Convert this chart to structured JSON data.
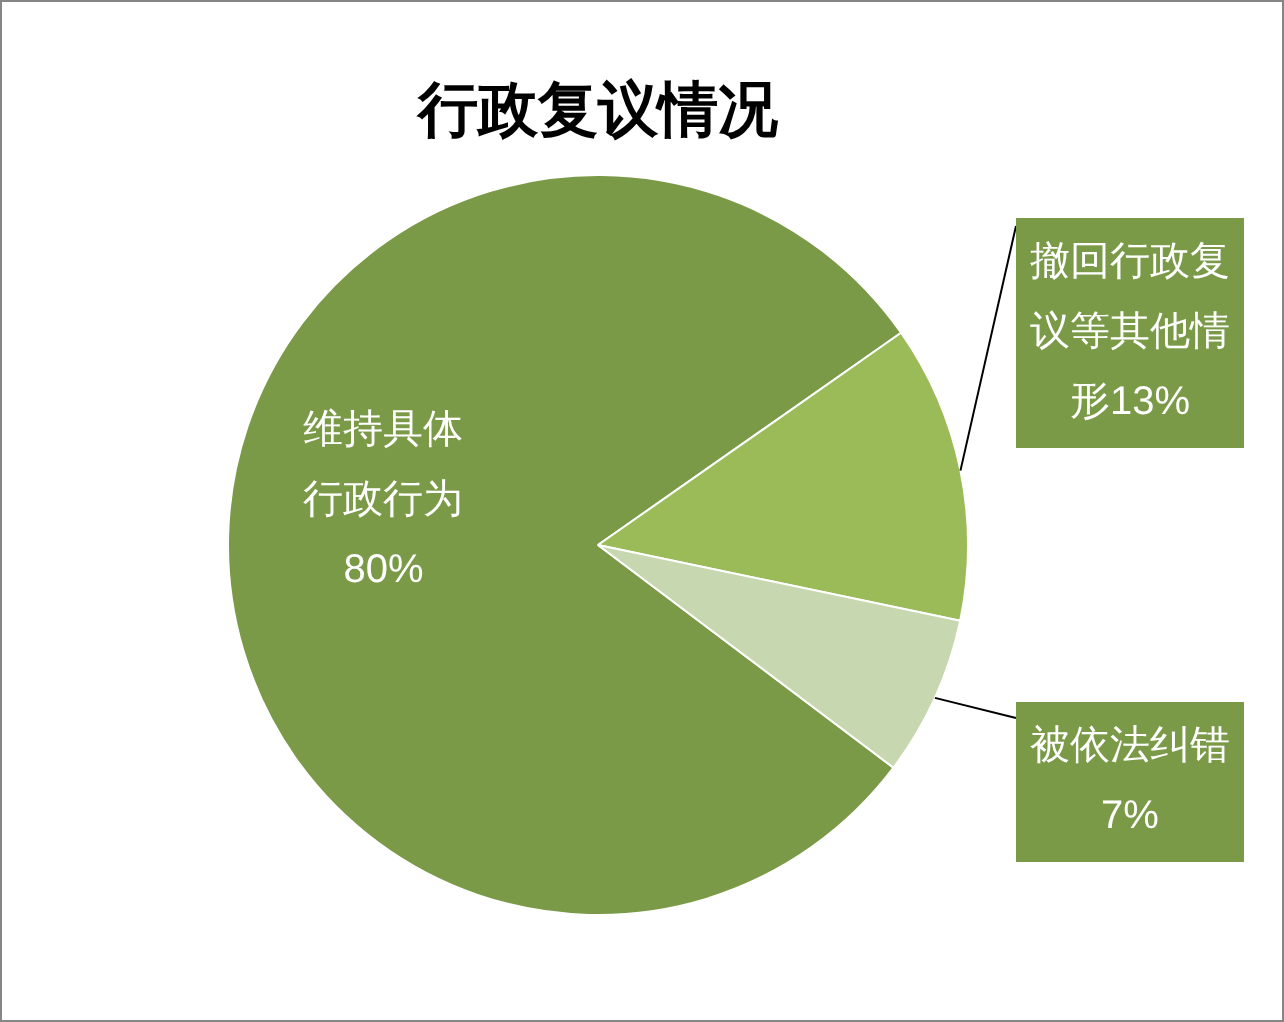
{
  "chart_data": {
    "type": "pie",
    "title": "行政复议情况",
    "categories": [
      "维持具体行政行为",
      "撤回行政复议等其他情形",
      "被依法纠错"
    ],
    "values": [
      80,
      13,
      7
    ],
    "value_labels": [
      "80%",
      "13%",
      "7%"
    ],
    "colors": [
      "#7a9a47",
      "#9bbb59",
      "#c7d8b0"
    ],
    "legend": false
  }
}
